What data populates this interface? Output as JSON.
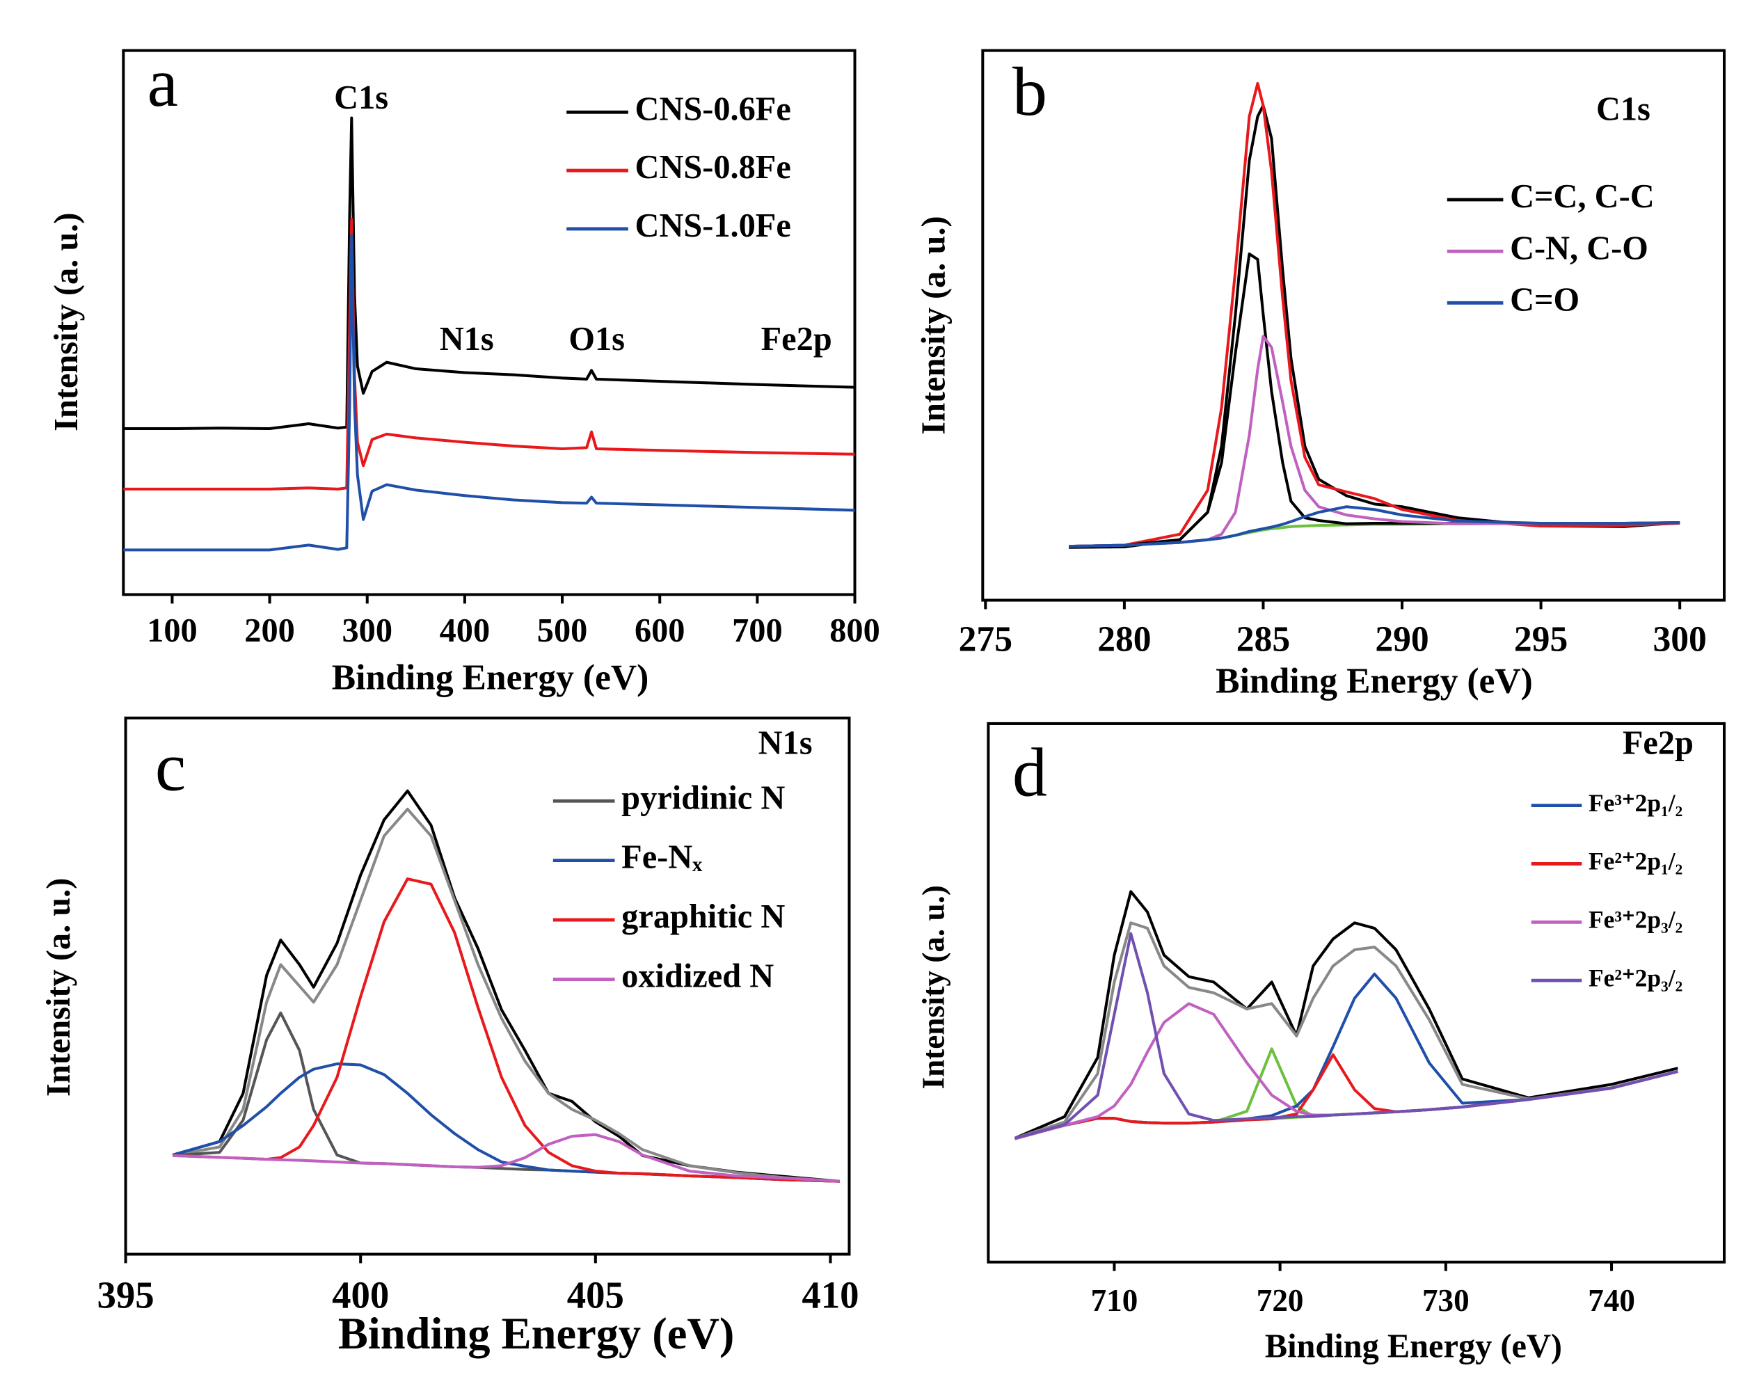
{
  "chart_data": [
    {
      "type": "line",
      "panel": "a",
      "xlabel": "Binding Energy (eV)",
      "ylabel": "Intensity (a. u.)",
      "annotations": [
        "C1s",
        "N1s",
        "O1s",
        "Fe2p"
      ],
      "xlim": [
        50,
        800
      ],
      "xticks": [
        100,
        200,
        300,
        400,
        500,
        600,
        700,
        800
      ],
      "ylim": [
        0,
        100
      ],
      "x": [
        50,
        100,
        150,
        200,
        240,
        270,
        279,
        282,
        284,
        287,
        290,
        296,
        305,
        320,
        350,
        400,
        450,
        500,
        525,
        530,
        535,
        600,
        700,
        800
      ],
      "series": [
        {
          "name": "CNS-0.6Fe",
          "color": "#000000",
          "values": [
            30.5,
            30.5,
            30.6,
            30.5,
            31.4,
            30.6,
            30.8,
            70,
            87.6,
            55,
            42,
            37,
            41,
            42.7,
            41.5,
            40.8,
            40.4,
            39.8,
            39.6,
            41.2,
            39.6,
            39.2,
            38.6,
            38.1
          ]
        },
        {
          "name": "CNS-0.8Fe",
          "color": "#e8191c",
          "values": [
            19.4,
            19.4,
            19.4,
            19.4,
            19.6,
            19.4,
            19.6,
            50,
            69,
            40,
            28,
            23.7,
            28.5,
            29.5,
            28.8,
            28,
            27.3,
            26.8,
            27,
            29.9,
            26.8,
            26.5,
            26.1,
            25.8
          ]
        },
        {
          "name": "CNS-1.0Fe",
          "color": "#1f4fa8",
          "values": [
            8.2,
            8.2,
            8.2,
            8.2,
            9.1,
            8.3,
            8.6,
            35,
            66,
            35,
            22,
            13.8,
            19,
            20.2,
            19.2,
            18.2,
            17.4,
            16.9,
            16.8,
            17.9,
            16.8,
            16.5,
            16,
            15.5
          ]
        }
      ]
    },
    {
      "type": "line",
      "panel": "b",
      "xlabel": "Binding Energy (eV)",
      "ylabel": "Intensity (a. u.)",
      "annotations": [
        "C1s"
      ],
      "xlim": [
        274.9,
        301.6
      ],
      "xticks": [
        275,
        280,
        285,
        290,
        295,
        300
      ],
      "ylim": [
        0,
        100
      ],
      "x": [
        278,
        280,
        282,
        283,
        283.5,
        284,
        284.5,
        284.8,
        285,
        285.3,
        285.7,
        286,
        286.5,
        287,
        288,
        289,
        290,
        292,
        295,
        298,
        300
      ],
      "series": [
        {
          "color": "#000000",
          "values": [
            9.6,
            9.7,
            11,
            16,
            28,
            52,
            80,
            88,
            90,
            84,
            60,
            44,
            28,
            22,
            19,
            17.5,
            17,
            15,
            13.5,
            13.4,
            14.1
          ]
        },
        {
          "color": "#e8191c",
          "values": [
            9.8,
            10,
            12,
            20,
            35,
            60,
            88,
            94,
            90,
            78,
            55,
            40,
            26,
            21,
            19.7,
            18.5,
            16.5,
            14.5,
            13.5,
            13.6,
            14
          ]
        },
        {
          "color": "#6cc040",
          "values": [
            9.8,
            10,
            10.5,
            11,
            11.3,
            11.8,
            12.3,
            12.6,
            12.8,
            13,
            13.2,
            13.4,
            13.5,
            13.6,
            13.7,
            13.8,
            13.8,
            13.9,
            14,
            14,
            14.1
          ]
        },
        {
          "name": "C=C, C-C",
          "color": "#000000",
          "values": [
            9.8,
            10,
            11,
            16,
            25,
            45,
            63,
            62,
            52,
            38,
            25,
            18,
            15,
            14.5,
            13.9,
            14,
            14,
            14,
            14,
            14,
            14.1
          ]
        },
        {
          "name": "C-N, C-O",
          "color": "#c060c0",
          "values": [
            9.8,
            10,
            10.5,
            11,
            12,
            16,
            30,
            42,
            48,
            46,
            36,
            28,
            20,
            17,
            15.5,
            14.8,
            14.3,
            13.9,
            14,
            14,
            14.1
          ]
        },
        {
          "name": "C=O",
          "color": "#1f4fa8",
          "values": [
            9.8,
            10,
            10.5,
            11,
            11.3,
            11.8,
            12.5,
            12.8,
            13,
            13.3,
            13.8,
            14.3,
            15.2,
            16,
            17,
            16.5,
            15.5,
            14.4,
            14,
            14,
            14.1
          ]
        }
      ]
    },
    {
      "type": "line",
      "panel": "c",
      "xlabel": "Binding Energy (eV)",
      "ylabel": "Intensity (a. u.)",
      "annotations": [
        "N1s"
      ],
      "xlim": [
        395,
        410.4
      ],
      "xticks": [
        395,
        400,
        405,
        410
      ],
      "ylim": [
        0,
        100
      ],
      "x": [
        396,
        397,
        397.5,
        398,
        398.3,
        398.7,
        399,
        399.5,
        400,
        400.5,
        401,
        401.5,
        402,
        402.5,
        403,
        403.5,
        404,
        404.5,
        405,
        405.5,
        406,
        407,
        408,
        409,
        410.2
      ],
      "series": [
        {
          "color": "#000000",
          "values": [
            18.5,
            21,
            30,
            52,
            58.6,
            54,
            49.8,
            58,
            70.7,
            81,
            86.4,
            80,
            66.5,
            57,
            45.6,
            38,
            30,
            28.5,
            24.7,
            22,
            18.4,
            16.5,
            15.3,
            14.5,
            13.6
          ]
        },
        {
          "color": "#888888",
          "values": [
            18.4,
            20,
            27,
            47,
            54,
            50,
            47,
            54,
            66,
            78,
            83,
            78,
            66,
            54,
            44,
            36,
            30,
            27,
            25,
            22.5,
            19.5,
            16.5,
            15.2,
            14.3,
            13.6
          ]
        },
        {
          "name": "pyridinic N",
          "color": "#555555",
          "values": [
            18.4,
            19,
            25,
            40,
            45,
            38,
            27,
            18.5,
            17,
            16.9,
            16.7,
            16.5,
            16.3,
            16.2,
            16,
            15.8,
            15.7,
            15.5,
            15.3,
            15.1,
            15,
            14.6,
            14.3,
            13.9,
            13.6
          ]
        },
        {
          "name": "Fe-Nₓ",
          "color": "#1f4fa8",
          "values": [
            18.5,
            21,
            24,
            27.5,
            30,
            33,
            34.5,
            35.5,
            35.3,
            33.5,
            30,
            26,
            22.5,
            19.5,
            17.2,
            16.4,
            15.7,
            15.5,
            15.3,
            15.1,
            15,
            14.6,
            14.3,
            13.9,
            13.6
          ]
        },
        {
          "name": "graphitic N",
          "color": "#e8191c",
          "values": [
            18.4,
            18.06,
            17.9,
            17.7,
            18,
            20,
            24,
            33,
            48,
            62,
            70,
            69,
            60,
            46,
            33,
            24,
            19,
            16.5,
            15.5,
            15.1,
            15,
            14.6,
            14.3,
            13.9,
            13.6
          ]
        },
        {
          "name": "oxidized N",
          "color": "#c060c0",
          "values": [
            18.4,
            18.06,
            17.9,
            17.7,
            17.6,
            17.5,
            17.4,
            17.2,
            17,
            16.9,
            16.7,
            16.5,
            16.3,
            16.2,
            16.5,
            18,
            20.5,
            22,
            22.3,
            21,
            18.5,
            15.5,
            14.6,
            14.2,
            13.6
          ]
        }
      ]
    },
    {
      "type": "line",
      "panel": "d",
      "xlabel": "Binding Energy (eV)",
      "ylabel": "Intensity (a. u.)",
      "annotations": [
        "Fe2p"
      ],
      "xlim": [
        702.4,
        746.8
      ],
      "xticks": [
        710,
        720,
        730,
        740
      ],
      "ylim": [
        0,
        100
      ],
      "x": [
        704,
        707,
        709,
        710,
        711,
        712,
        713,
        714.5,
        716,
        718,
        719.5,
        721,
        722,
        723.2,
        724.5,
        725.7,
        727,
        729,
        731,
        735,
        740,
        744
      ],
      "series": [
        {
          "color": "#000000",
          "values": [
            23,
            27,
            38,
            57,
            68.8,
            65,
            57,
            53,
            52,
            47,
            52,
            42,
            55,
            60,
            63,
            62,
            58,
            47,
            34,
            30.5,
            33,
            36
          ]
        },
        {
          "color": "#888888",
          "values": [
            23,
            26,
            35,
            52,
            63,
            62,
            55,
            51,
            50,
            47,
            48,
            42,
            49,
            55,
            58,
            58.5,
            55,
            45,
            33,
            30.3,
            32.4,
            35.4
          ]
        },
        {
          "color": "#6cc040",
          "values": [
            22.9,
            25.4,
            26.7,
            26.7,
            26.1,
            25.9,
            25.8,
            25.8,
            26,
            26.4,
            26.6,
            26.9,
            27,
            27.3,
            27.5,
            27.7,
            27.9,
            28.3,
            28.8,
            30.2,
            32.3,
            35.4
          ]
        },
        {
          "color": "#6cc040",
          "values": [
            22.9,
            25.4,
            26.7,
            26.7,
            26.1,
            25.9,
            25.8,
            25.8,
            26,
            28,
            39.6,
            29,
            27,
            27.3,
            27.5,
            27.7,
            27.9,
            28.3,
            28.8,
            30.2,
            32.3,
            35.4
          ]
        },
        {
          "name": "Fe³⁺2p₁/₂",
          "color": "#1f4fa8",
          "values": [
            22.9,
            25.4,
            26.7,
            26.7,
            26.1,
            25.9,
            25.8,
            25.8,
            26,
            26.6,
            27.2,
            29,
            32,
            40,
            49,
            53.5,
            49,
            37,
            29.5,
            30.2,
            32.3,
            35.4
          ]
        },
        {
          "name": "Fe²⁺2p₁/₂",
          "color": "#e8191c",
          "values": [
            22.9,
            25.4,
            26.7,
            26.7,
            26.1,
            25.9,
            25.8,
            25.8,
            26,
            26.4,
            26.6,
            27.5,
            32,
            38.5,
            32,
            28.5,
            27.9,
            28.3,
            28.8,
            30.2,
            32.3,
            35.4
          ]
        },
        {
          "name": "Fe³⁺2p₃/₂",
          "color": "#c060c0",
          "values": [
            22.9,
            25.4,
            27,
            29,
            33,
            39,
            44.5,
            48,
            46,
            37,
            31,
            28,
            27.3,
            27.3,
            27.5,
            27.7,
            27.9,
            28.3,
            28.8,
            30.2,
            32.3,
            35.4
          ]
        },
        {
          "name": "Fe²⁺2p₃/₂",
          "color": "#7050b0",
          "values": [
            23,
            25.5,
            31,
            46,
            61,
            50,
            35,
            27.5,
            26.3,
            26.6,
            26.8,
            27,
            27.1,
            27.3,
            27.5,
            27.7,
            27.9,
            28.3,
            28.8,
            30.2,
            32.3,
            35.4
          ]
        }
      ]
    }
  ]
}
